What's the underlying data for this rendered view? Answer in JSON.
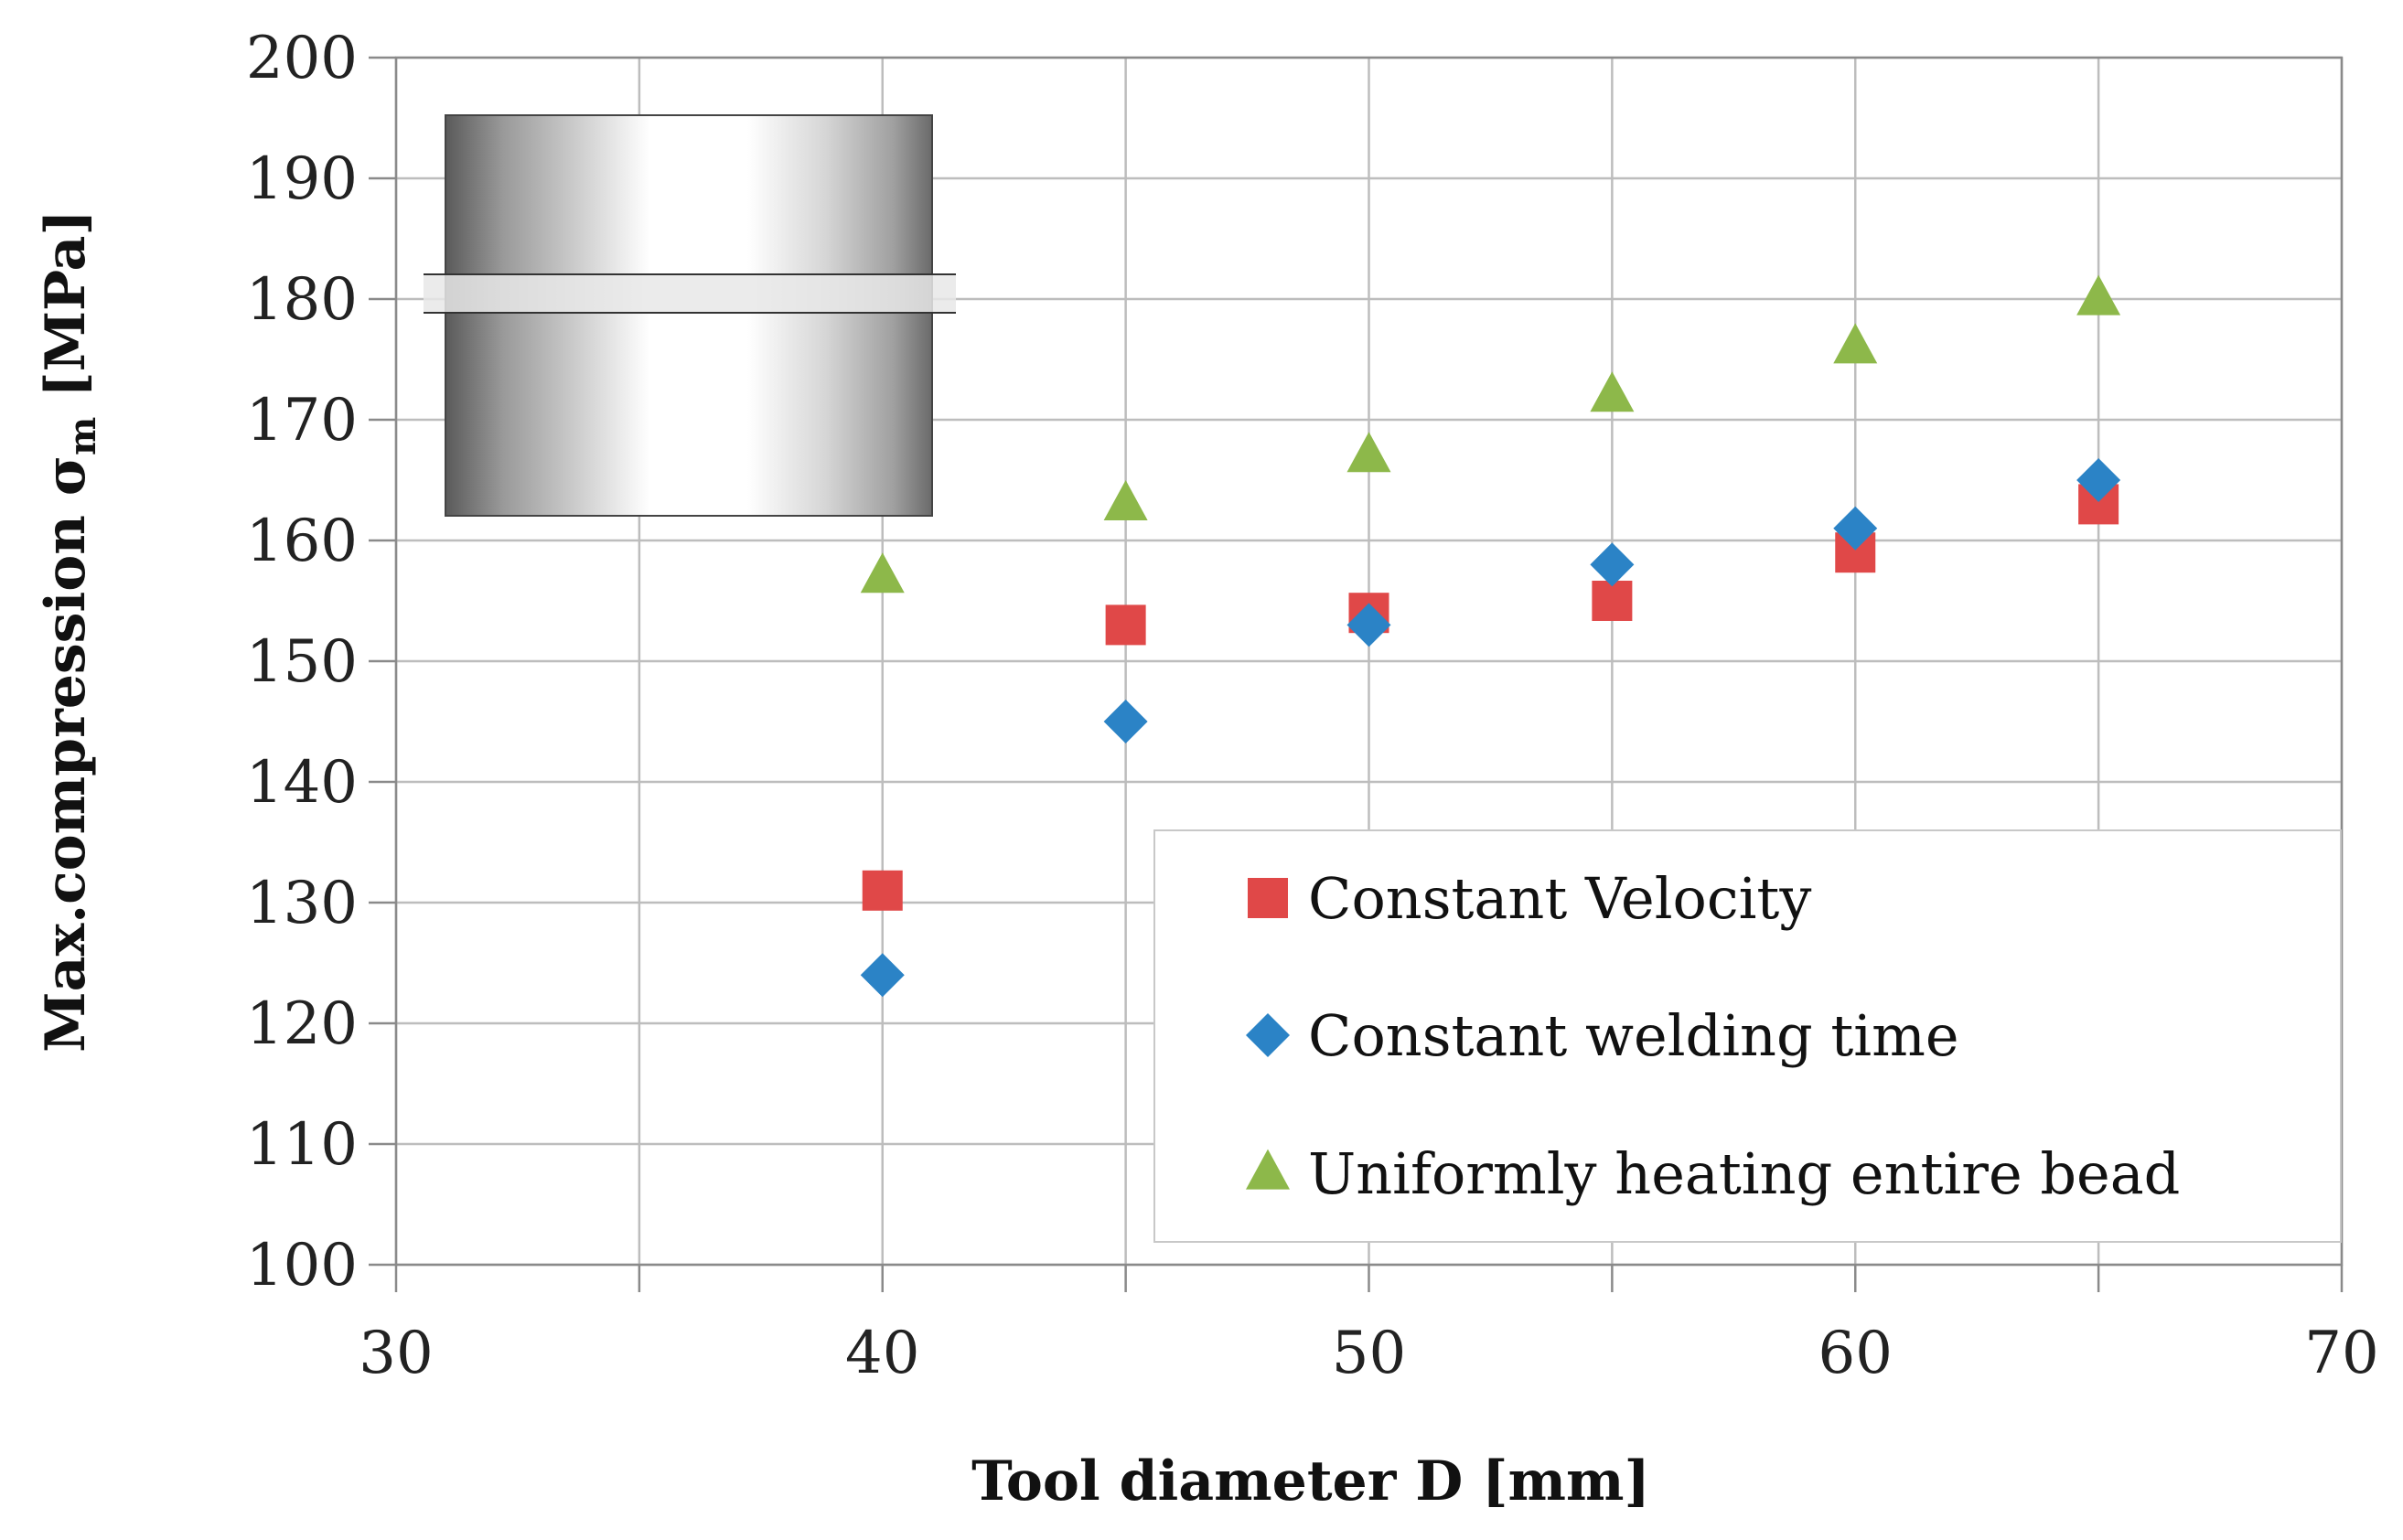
{
  "chart_data": {
    "type": "scatter",
    "xlabel": "Tool diameter D [mm]",
    "ylabel_main": "Max.compression σ",
    "ylabel_sub": "m",
    "ylabel_unit": " [MPa]",
    "xlim": [
      30,
      70
    ],
    "ylim": [
      100,
      200
    ],
    "x_ticks": [
      30,
      40,
      50,
      60,
      70
    ],
    "y_ticks": [
      100,
      110,
      120,
      130,
      140,
      150,
      160,
      170,
      180,
      190,
      200
    ],
    "grid": true,
    "legend_position": "bottom-right",
    "series": [
      {
        "name": "Constant Velocity",
        "marker": "square",
        "color": "#E04848",
        "x": [
          40,
          45,
          50,
          55,
          60,
          65
        ],
        "y": [
          131,
          153,
          154,
          155,
          159,
          163
        ]
      },
      {
        "name": "Constant welding time",
        "marker": "diamond",
        "color": "#2B83C6",
        "x": [
          40,
          45,
          50,
          55,
          60,
          65
        ],
        "y": [
          124,
          145,
          153,
          158,
          161,
          165
        ]
      },
      {
        "name": "Uniformly heating entire bead",
        "marker": "triangle",
        "color": "#8DB84A",
        "x": [
          40,
          45,
          50,
          55,
          60,
          65
        ],
        "y": [
          157,
          163,
          167,
          172,
          176,
          180
        ]
      }
    ]
  },
  "inset": {
    "name": "tool-cylinder-illustration"
  }
}
